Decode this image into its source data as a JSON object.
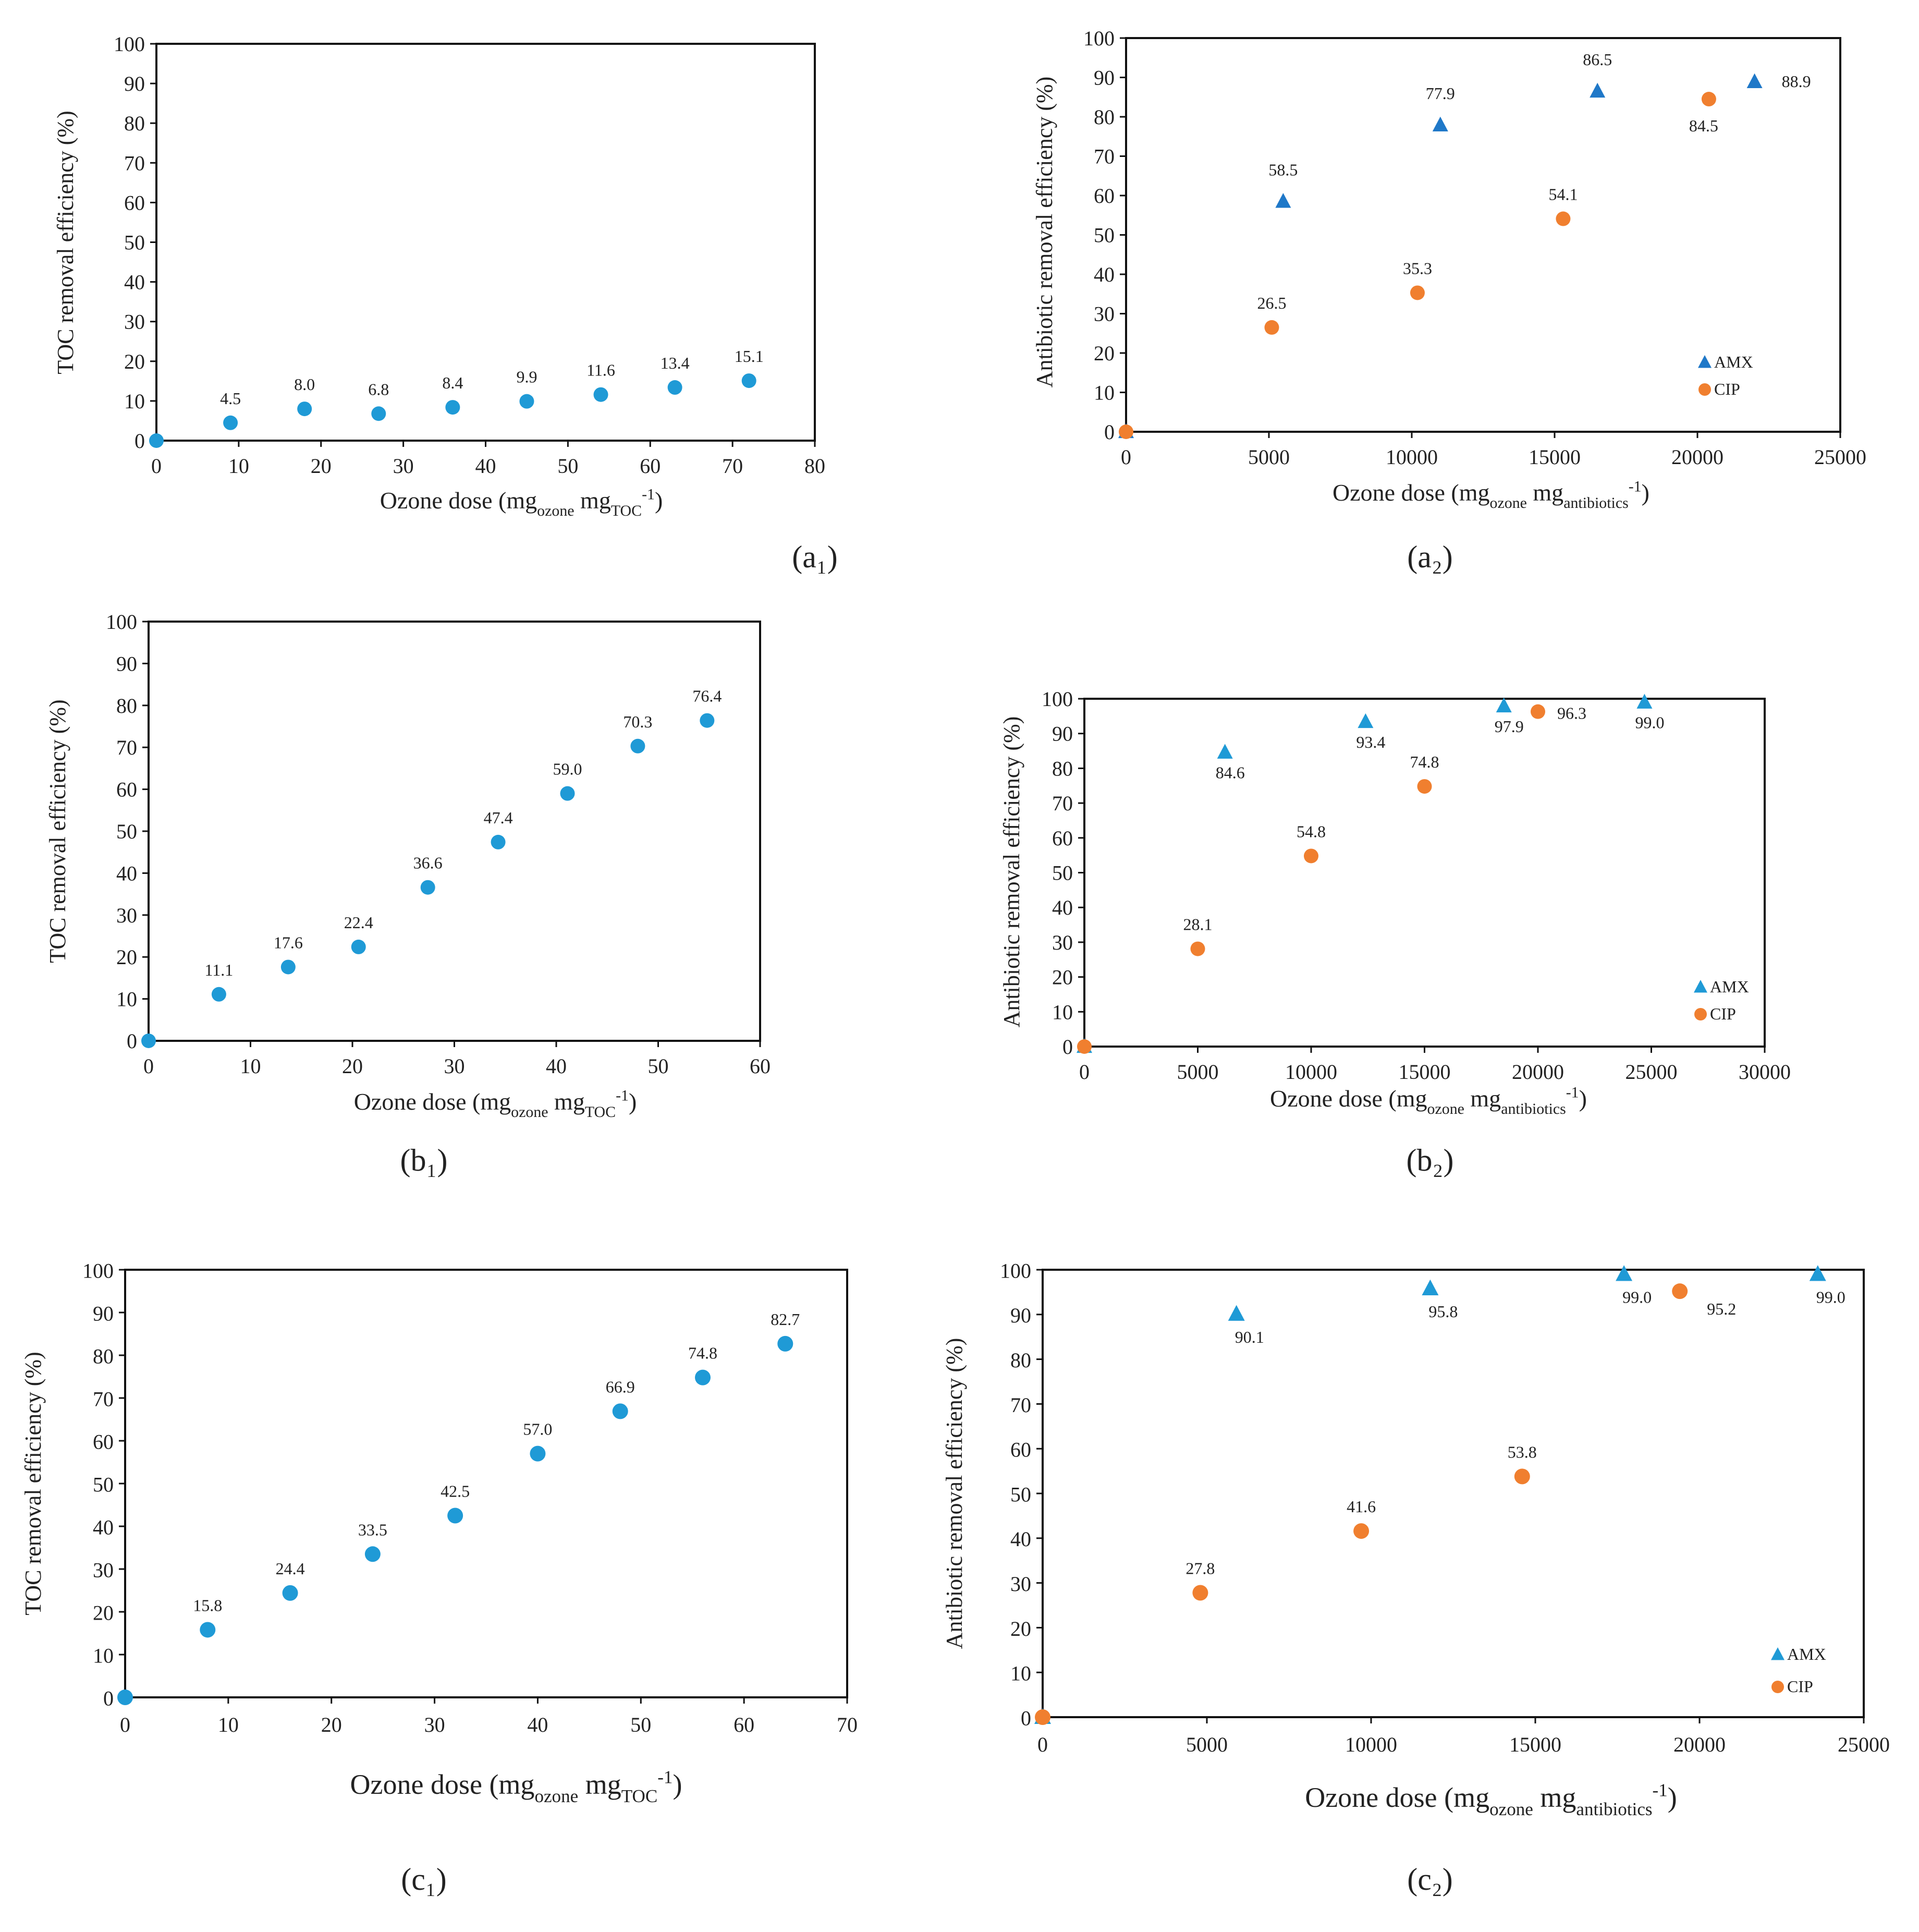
{
  "colors": {
    "blue": "#1f9ad6",
    "blue_tri": "#1f78c8",
    "orange": "#f07f2f"
  },
  "chart_data": [
    {
      "id": "a1",
      "type": "scatter",
      "panel_label": "(a₁)",
      "title": "",
      "xlabel": {
        "pre": "Ozone dose (mg",
        "sub1": "ozone",
        "mid": " mg",
        "sub2": "TOC",
        "sup": "-1",
        "post": ")"
      },
      "ylabel": "TOC removal efficiency (%)",
      "xlim": [
        0,
        80
      ],
      "ylim": [
        0,
        100
      ],
      "xticks": [
        0,
        10,
        20,
        30,
        40,
        50,
        60,
        70,
        80
      ],
      "yticks": [
        0,
        10,
        20,
        30,
        40,
        50,
        60,
        70,
        80,
        90,
        100
      ],
      "series": [
        {
          "name": "TOC",
          "marker": "circle",
          "color": "#1f9ad6",
          "points": [
            {
              "x": 0,
              "y": 0,
              "label": ""
            },
            {
              "x": 9,
              "y": 4.5,
              "label": "4.5"
            },
            {
              "x": 18,
              "y": 8.0,
              "label": "8.0"
            },
            {
              "x": 27,
              "y": 6.8,
              "label": "6.8"
            },
            {
              "x": 36,
              "y": 8.4,
              "label": "8.4"
            },
            {
              "x": 45,
              "y": 9.9,
              "label": "9.9"
            },
            {
              "x": 54,
              "y": 11.6,
              "label": "11.6"
            },
            {
              "x": 63,
              "y": 13.4,
              "label": "13.4"
            },
            {
              "x": 72,
              "y": 15.1,
              "label": "15.1"
            }
          ]
        }
      ]
    },
    {
      "id": "a2",
      "type": "scatter",
      "panel_label": "(a₂)",
      "title": "",
      "xlabel": {
        "pre": "Ozone dose (mg",
        "sub1": "ozone",
        "mid": " mg",
        "sub2": "antibiotics",
        "sup": "-1",
        "post": ")"
      },
      "ylabel": "Antibiotic removal efficiency (%)",
      "xlim": [
        0,
        25000
      ],
      "ylim": [
        0,
        100
      ],
      "xticks": [
        0,
        5000,
        10000,
        15000,
        20000,
        25000
      ],
      "yticks": [
        0,
        10,
        20,
        30,
        40,
        50,
        60,
        70,
        80,
        90,
        100
      ],
      "legend": [
        {
          "name": "AMX",
          "marker": "triangle"
        },
        {
          "name": "CIP",
          "marker": "circle"
        }
      ],
      "series": [
        {
          "name": "AMX",
          "marker": "triangle",
          "color": "#1f78c8",
          "points": [
            {
              "x": 0,
              "y": 0,
              "label": ""
            },
            {
              "x": 5500,
              "y": 58.5,
              "label": "58.5"
            },
            {
              "x": 11000,
              "y": 77.9,
              "label": "77.9"
            },
            {
              "x": 16500,
              "y": 86.5,
              "label": "86.5"
            },
            {
              "x": 22000,
              "y": 88.9,
              "label": "88.9"
            }
          ]
        },
        {
          "name": "CIP",
          "marker": "circle",
          "color": "#f07f2f",
          "points": [
            {
              "x": 0,
              "y": 0,
              "label": ""
            },
            {
              "x": 5100,
              "y": 26.5,
              "label": "26.5"
            },
            {
              "x": 10200,
              "y": 35.3,
              "label": "35.3"
            },
            {
              "x": 15300,
              "y": 54.1,
              "label": "54.1"
            },
            {
              "x": 20400,
              "y": 84.5,
              "label": "84.5"
            }
          ]
        }
      ]
    },
    {
      "id": "b1",
      "type": "scatter",
      "panel_label": "(b₁)",
      "title": "",
      "xlabel": {
        "pre": "Ozone dose (mg",
        "sub1": "ozone",
        "mid": " mg",
        "sub2": "TOC",
        "sup": "-1",
        "post": ")"
      },
      "ylabel": "TOC removal efficiency (%)",
      "xlim": [
        0,
        60
      ],
      "ylim": [
        0,
        100
      ],
      "xticks": [
        0,
        10,
        20,
        30,
        40,
        50,
        60
      ],
      "yticks": [
        0,
        10,
        20,
        30,
        40,
        50,
        60,
        70,
        80,
        90,
        100
      ],
      "series": [
        {
          "name": "TOC",
          "marker": "circle",
          "color": "#1f9ad6",
          "points": [
            {
              "x": 0,
              "y": 0,
              "label": ""
            },
            {
              "x": 6.9,
              "y": 11.1,
              "label": "11.1"
            },
            {
              "x": 13.7,
              "y": 17.6,
              "label": "17.6"
            },
            {
              "x": 20.6,
              "y": 22.4,
              "label": "22.4"
            },
            {
              "x": 27.4,
              "y": 36.6,
              "label": "36.6"
            },
            {
              "x": 34.3,
              "y": 47.4,
              "label": "47.4"
            },
            {
              "x": 41.1,
              "y": 59.0,
              "label": "59.0"
            },
            {
              "x": 48.0,
              "y": 70.3,
              "label": "70.3"
            },
            {
              "x": 54.8,
              "y": 76.4,
              "label": "76.4"
            }
          ]
        }
      ]
    },
    {
      "id": "b2",
      "type": "scatter",
      "panel_label": "(b₂)",
      "title": "",
      "xlabel": {
        "pre": "Ozone dose (mg",
        "sub1": "ozone",
        "mid": " mg",
        "sub2": "antibiotics",
        "sup": "-1",
        "post": ")"
      },
      "ylabel": "Antibiotic removal efficiency (%)",
      "xlim": [
        0,
        30000
      ],
      "ylim": [
        0,
        100
      ],
      "xticks": [
        0,
        5000,
        10000,
        15000,
        20000,
        25000,
        30000
      ],
      "yticks": [
        0,
        10,
        20,
        30,
        40,
        50,
        60,
        70,
        80,
        90,
        100
      ],
      "legend": [
        {
          "name": "AMX",
          "marker": "triangle"
        },
        {
          "name": "CIP",
          "marker": "circle"
        }
      ],
      "series": [
        {
          "name": "AMX",
          "marker": "triangle",
          "color": "#1f9ad6",
          "points": [
            {
              "x": 0,
              "y": 0,
              "label": ""
            },
            {
              "x": 6200,
              "y": 84.6,
              "label": "84.6"
            },
            {
              "x": 12400,
              "y": 93.4,
              "label": "93.4"
            },
            {
              "x": 18500,
              "y": 97.9,
              "label": "97.9"
            },
            {
              "x": 24700,
              "y": 99.0,
              "label": "99.0"
            }
          ]
        },
        {
          "name": "CIP",
          "marker": "circle",
          "color": "#f07f2f",
          "points": [
            {
              "x": 0,
              "y": 0,
              "label": ""
            },
            {
              "x": 5000,
              "y": 28.1,
              "label": "28.1"
            },
            {
              "x": 10000,
              "y": 54.8,
              "label": "54.8"
            },
            {
              "x": 15000,
              "y": 74.8,
              "label": "74.8"
            },
            {
              "x": 20000,
              "y": 96.3,
              "label": "96.3"
            }
          ]
        }
      ]
    },
    {
      "id": "c1",
      "type": "scatter",
      "panel_label": "(c₁)",
      "title": "",
      "xlabel": {
        "pre": "Ozone dose (mg",
        "sub1": "ozone",
        "mid": " mg",
        "sub2": "TOC",
        "sup": "-1",
        "post": ")"
      },
      "ylabel": "TOC removal efficiency (%)",
      "xlim": [
        0,
        70
      ],
      "ylim": [
        0,
        100
      ],
      "xticks": [
        0,
        10,
        20,
        30,
        40,
        50,
        60,
        70
      ],
      "yticks": [
        0,
        10,
        20,
        30,
        40,
        50,
        60,
        70,
        80,
        90,
        100
      ],
      "series": [
        {
          "name": "TOC",
          "marker": "circle",
          "color": "#1f9ad6",
          "points": [
            {
              "x": 0,
              "y": 0,
              "label": ""
            },
            {
              "x": 8,
              "y": 15.8,
              "label": "15.8"
            },
            {
              "x": 16,
              "y": 24.4,
              "label": "24.4"
            },
            {
              "x": 24,
              "y": 33.5,
              "label": "33.5"
            },
            {
              "x": 32,
              "y": 42.5,
              "label": "42.5"
            },
            {
              "x": 40,
              "y": 57.0,
              "label": "57.0"
            },
            {
              "x": 48,
              "y": 66.9,
              "label": "66.9"
            },
            {
              "x": 56,
              "y": 74.8,
              "label": "74.8"
            },
            {
              "x": 64,
              "y": 82.7,
              "label": "82.7"
            }
          ]
        }
      ]
    },
    {
      "id": "c2",
      "type": "scatter",
      "panel_label": "(c₂)",
      "title": "",
      "xlabel": {
        "pre": "Ozone dose (mg",
        "sub1": "ozone",
        "mid": " mg",
        "sub2": "antibiotics",
        "sup": "-1",
        "post": ")"
      },
      "ylabel": "Antibiotic removal efficiency (%)",
      "xlim": [
        0,
        25000
      ],
      "ylim": [
        0,
        100
      ],
      "xticks": [
        0,
        5000,
        10000,
        15000,
        20000,
        25000
      ],
      "yticks": [
        0,
        10,
        20,
        30,
        40,
        50,
        60,
        70,
        80,
        90,
        100
      ],
      "legend": [
        {
          "name": "AMX",
          "marker": "triangle"
        },
        {
          "name": "CIP",
          "marker": "circle"
        }
      ],
      "series": [
        {
          "name": "AMX",
          "marker": "triangle",
          "color": "#1f9ad6",
          "points": [
            {
              "x": 0,
              "y": 0,
              "label": ""
            },
            {
              "x": 5900,
              "y": 90.1,
              "label": "90.1"
            },
            {
              "x": 11800,
              "y": 95.8,
              "label": "95.8"
            },
            {
              "x": 17700,
              "y": 99.0,
              "label": "99.0"
            },
            {
              "x": 23600,
              "y": 99.0,
              "label": "99.0"
            }
          ]
        },
        {
          "name": "CIP",
          "marker": "circle",
          "color": "#f07f2f",
          "points": [
            {
              "x": 0,
              "y": 0,
              "label": ""
            },
            {
              "x": 4800,
              "y": 27.8,
              "label": "27.8"
            },
            {
              "x": 9700,
              "y": 41.6,
              "label": "41.6"
            },
            {
              "x": 14600,
              "y": 53.8,
              "label": "53.8"
            },
            {
              "x": 19400,
              "y": 95.2,
              "label": "95.2"
            }
          ]
        }
      ]
    }
  ]
}
